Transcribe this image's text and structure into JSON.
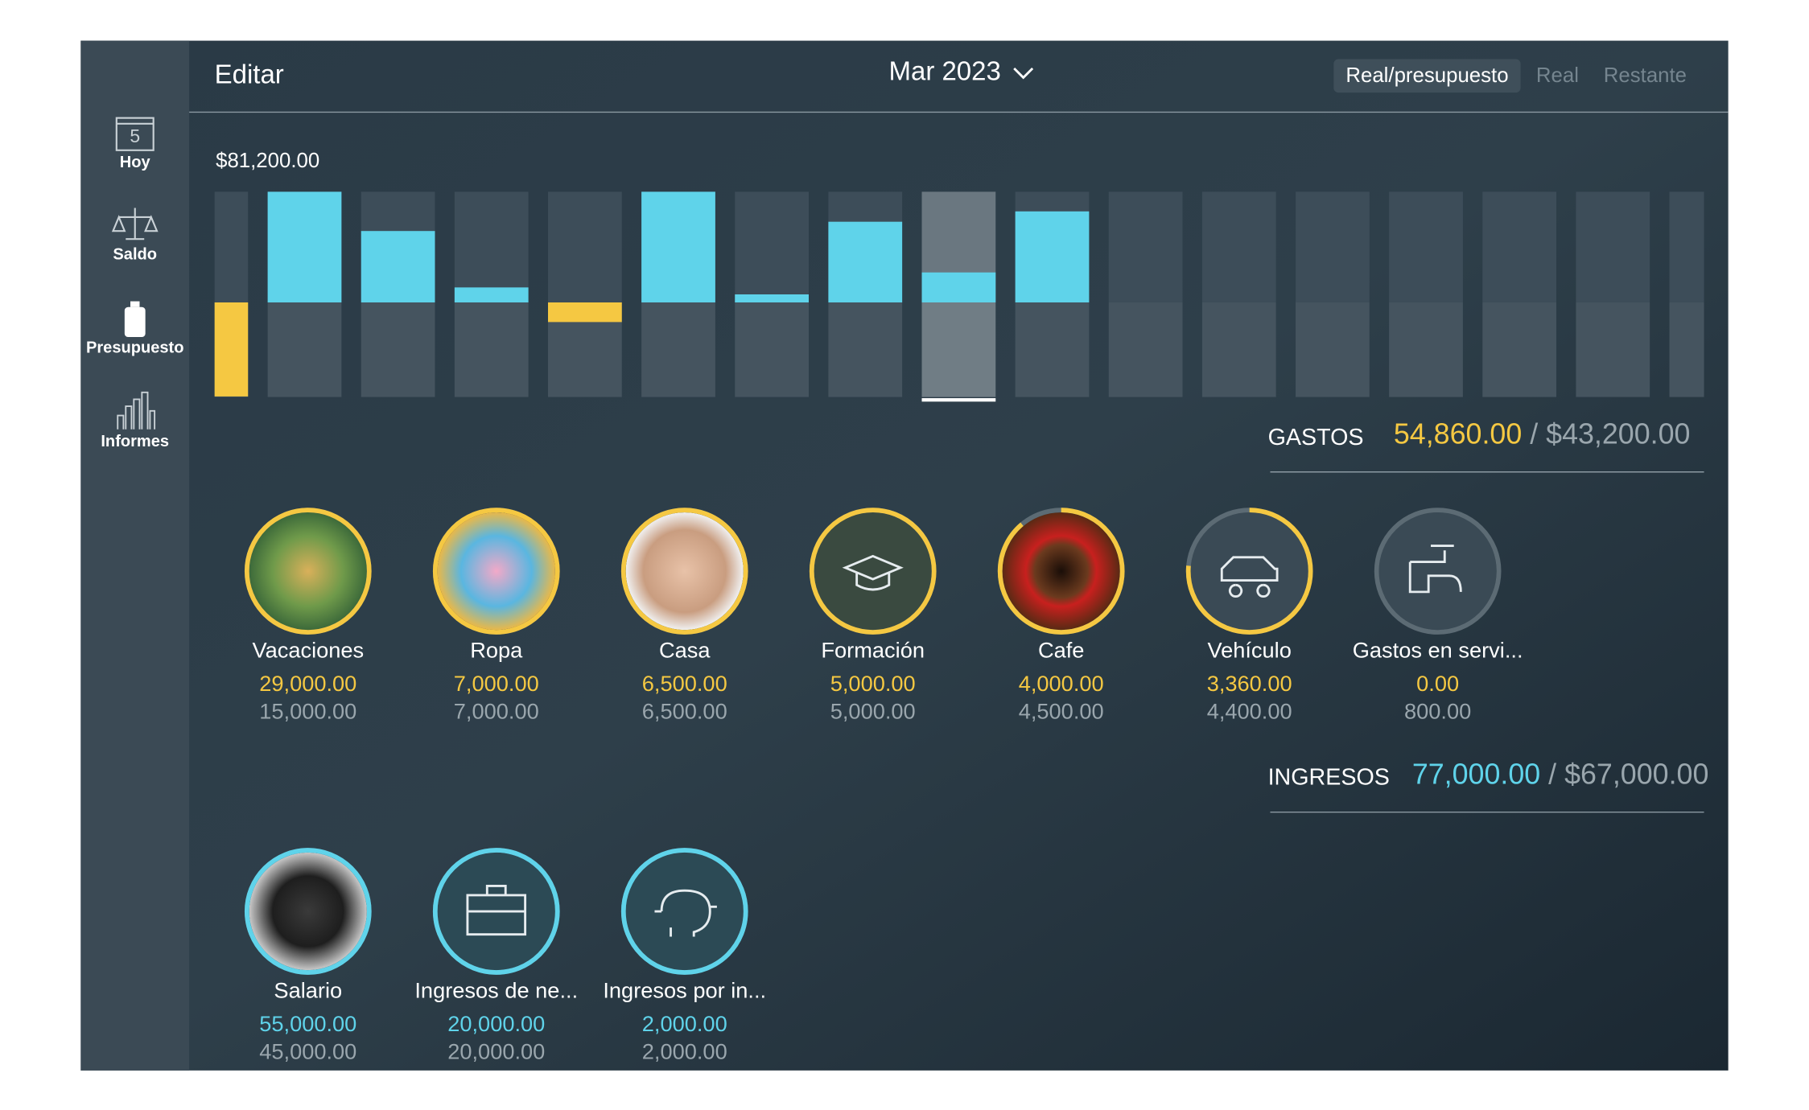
{
  "header": {
    "edit": "Editar",
    "period": "Mar 2023",
    "tabs": [
      "Real/presupuesto",
      "Real",
      "Restante"
    ]
  },
  "sidebar": {
    "items": [
      "Hoy",
      "Saldo",
      "Presupuesto",
      "Informes"
    ],
    "today_number": "5"
  },
  "chart_data": {
    "type": "bar",
    "top_label": "$81,200.00",
    "values": [
      -69000,
      81200,
      52400,
      11000,
      -14400,
      81200,
      5900,
      59200,
      22000,
      66800,
      null,
      null,
      null,
      null,
      null,
      null,
      null
    ],
    "ylim": [
      -69400,
      81200
    ],
    "positive_color": "#5fd3ea",
    "negative_color": "#f5c842"
  },
  "gastos": {
    "label": "GASTOS",
    "total_actual": "54,860.00",
    "total_budget": "$43,200.00",
    "items": [
      {
        "name": "Vacaciones",
        "actual": "29,000.00",
        "budget": "15,000.00"
      },
      {
        "name": "Ropa",
        "actual": "7,000.00",
        "budget": "7,000.00"
      },
      {
        "name": "Casa",
        "actual": "6,500.00",
        "budget": "6,500.00"
      },
      {
        "name": "Formación",
        "actual": "5,000.00",
        "budget": "5,000.00"
      },
      {
        "name": "Cafe",
        "actual": "4,000.00",
        "budget": "4,500.00"
      },
      {
        "name": "Vehículo",
        "actual": "3,360.00",
        "budget": "4,400.00"
      },
      {
        "name": "Gastos en servi...",
        "actual": "0.00",
        "budget": "800.00"
      }
    ]
  },
  "ingresos": {
    "label": "INGRESOS",
    "total_actual": "77,000.00",
    "total_budget": "$67,000.00",
    "items": [
      {
        "name": "Salario",
        "actual": "55,000.00",
        "budget": "45,000.00"
      },
      {
        "name": "Ingresos de ne...",
        "actual": "20,000.00",
        "budget": "20,000.00"
      },
      {
        "name": "Ingresos por in...",
        "actual": "2,000.00",
        "budget": "2,000.00"
      }
    ]
  }
}
